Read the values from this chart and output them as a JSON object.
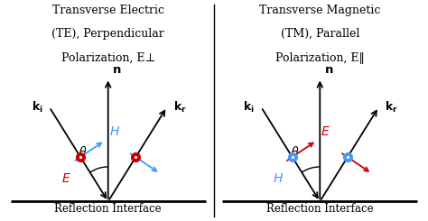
{
  "fig_width": 4.74,
  "fig_height": 2.45,
  "dpi": 100,
  "background_color": "#ffffff",
  "left_title_lines": [
    "Transverse Electric",
    "(TE), Perpendicular",
    "Polarization, E⊥"
  ],
  "right_title_lines": [
    "Transverse Magnetic",
    "(TM), Parallel",
    "Polarization, E‖"
  ],
  "title_fontsize": 9.0,
  "interface_label": "Reflection Interface",
  "interface_label_fontsize": 8.5,
  "H_color_left": "#4499ff",
  "E_color_left": "#cc0000",
  "H_color_right": "#4499ff",
  "E_color_right": "#cc0000",
  "dot_color_left_panel": "#cc0000",
  "dot_color_right_panel": "#4499ff"
}
